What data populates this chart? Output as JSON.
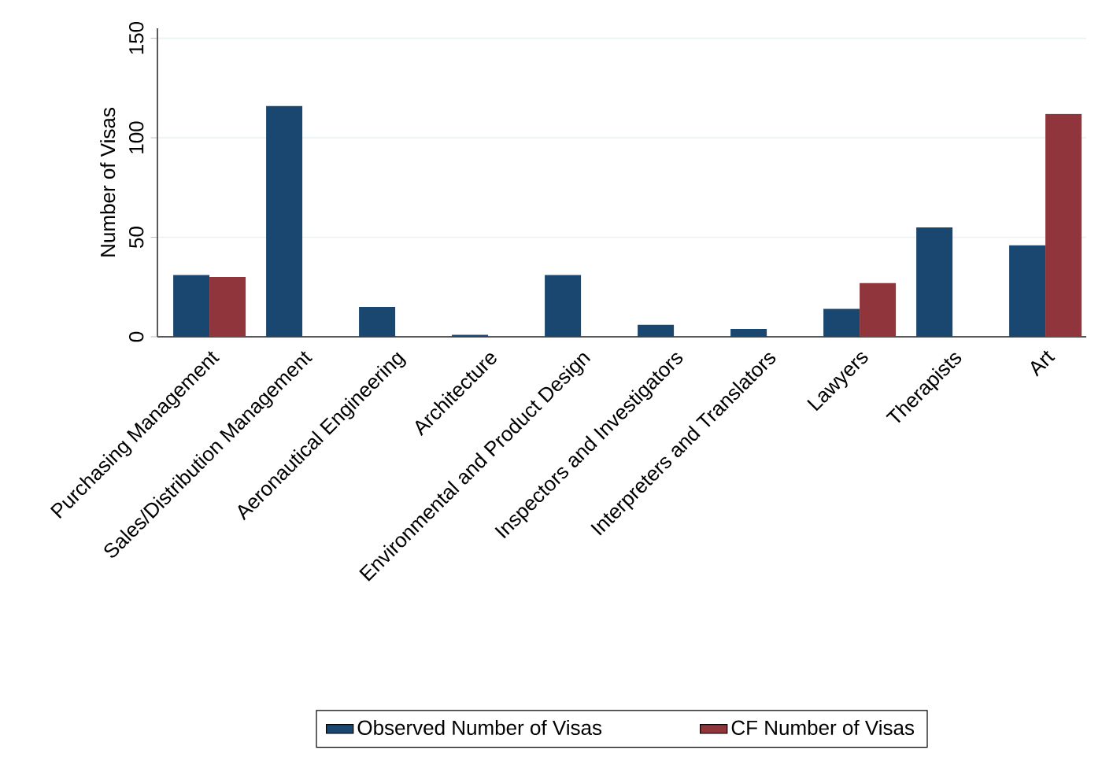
{
  "chart_data": {
    "type": "bar",
    "ylabel": "Number of Visas",
    "categories": [
      "Purchasing Management",
      "Sales/Distribution Management",
      "Aeronautical Engineering",
      "Architecture",
      "Environmental and Product Design",
      "Inspectors and Investigators",
      "Interpreters and Translators",
      "Lawyers",
      "Therapists",
      "Art"
    ],
    "series": [
      {
        "name": "Observed Number of Visas",
        "color": "#1a476f",
        "values": [
          31,
          116,
          15,
          1,
          31,
          6,
          4,
          14,
          55,
          46
        ]
      },
      {
        "name": "CF Number of Visas",
        "color": "#90353b",
        "values": [
          30,
          null,
          null,
          null,
          null,
          null,
          null,
          27,
          null,
          112
        ]
      }
    ],
    "ylim": [
      0,
      155
    ],
    "yticks": [
      0,
      50,
      100,
      150
    ],
    "grid": "y",
    "legend": "bottom"
  }
}
